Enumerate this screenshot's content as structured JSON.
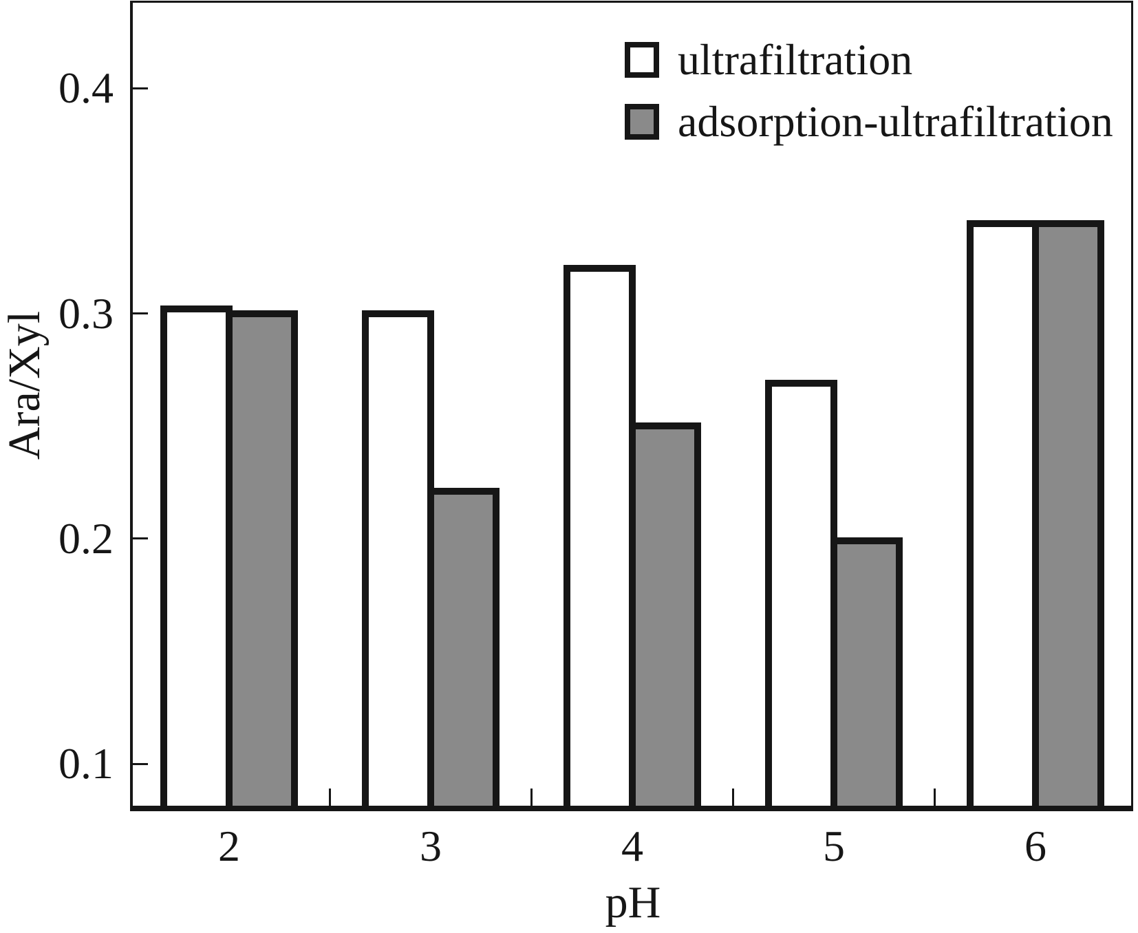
{
  "figure": {
    "background": "#ffffff",
    "stroke_color": "#161616"
  },
  "chart_data": {
    "type": "bar",
    "title": "",
    "xlabel": "pH",
    "ylabel": "Ara/Xyl",
    "categories": [
      "2",
      "3",
      "4",
      "5",
      "6"
    ],
    "series": [
      {
        "name": "ultrafiltration",
        "fill": "#ffffff",
        "values": [
          0.302,
          0.3,
          0.32,
          0.269,
          0.34
        ]
      },
      {
        "name": "adsorption-ultrafiltration",
        "fill": "#8a8a8a",
        "values": [
          0.3,
          0.221,
          0.25,
          0.199,
          0.34
        ]
      }
    ],
    "y_axis": {
      "tick_values": [
        0.1,
        0.2,
        0.3,
        0.4
      ],
      "tick_labels": [
        "0.1",
        "0.2",
        "0.3",
        "0.4"
      ],
      "range": [
        0.079,
        0.439
      ]
    },
    "x_axis": {
      "tick_labels": [
        "2",
        "3",
        "4",
        "5",
        "6"
      ]
    },
    "legend": {
      "position": "upper-center-inside",
      "entries": [
        {
          "label": "ultrafiltration",
          "fill": "#ffffff"
        },
        {
          "label": "adsorption-ultrafiltration",
          "fill": "#8a8a8a"
        }
      ]
    },
    "grid": false
  }
}
